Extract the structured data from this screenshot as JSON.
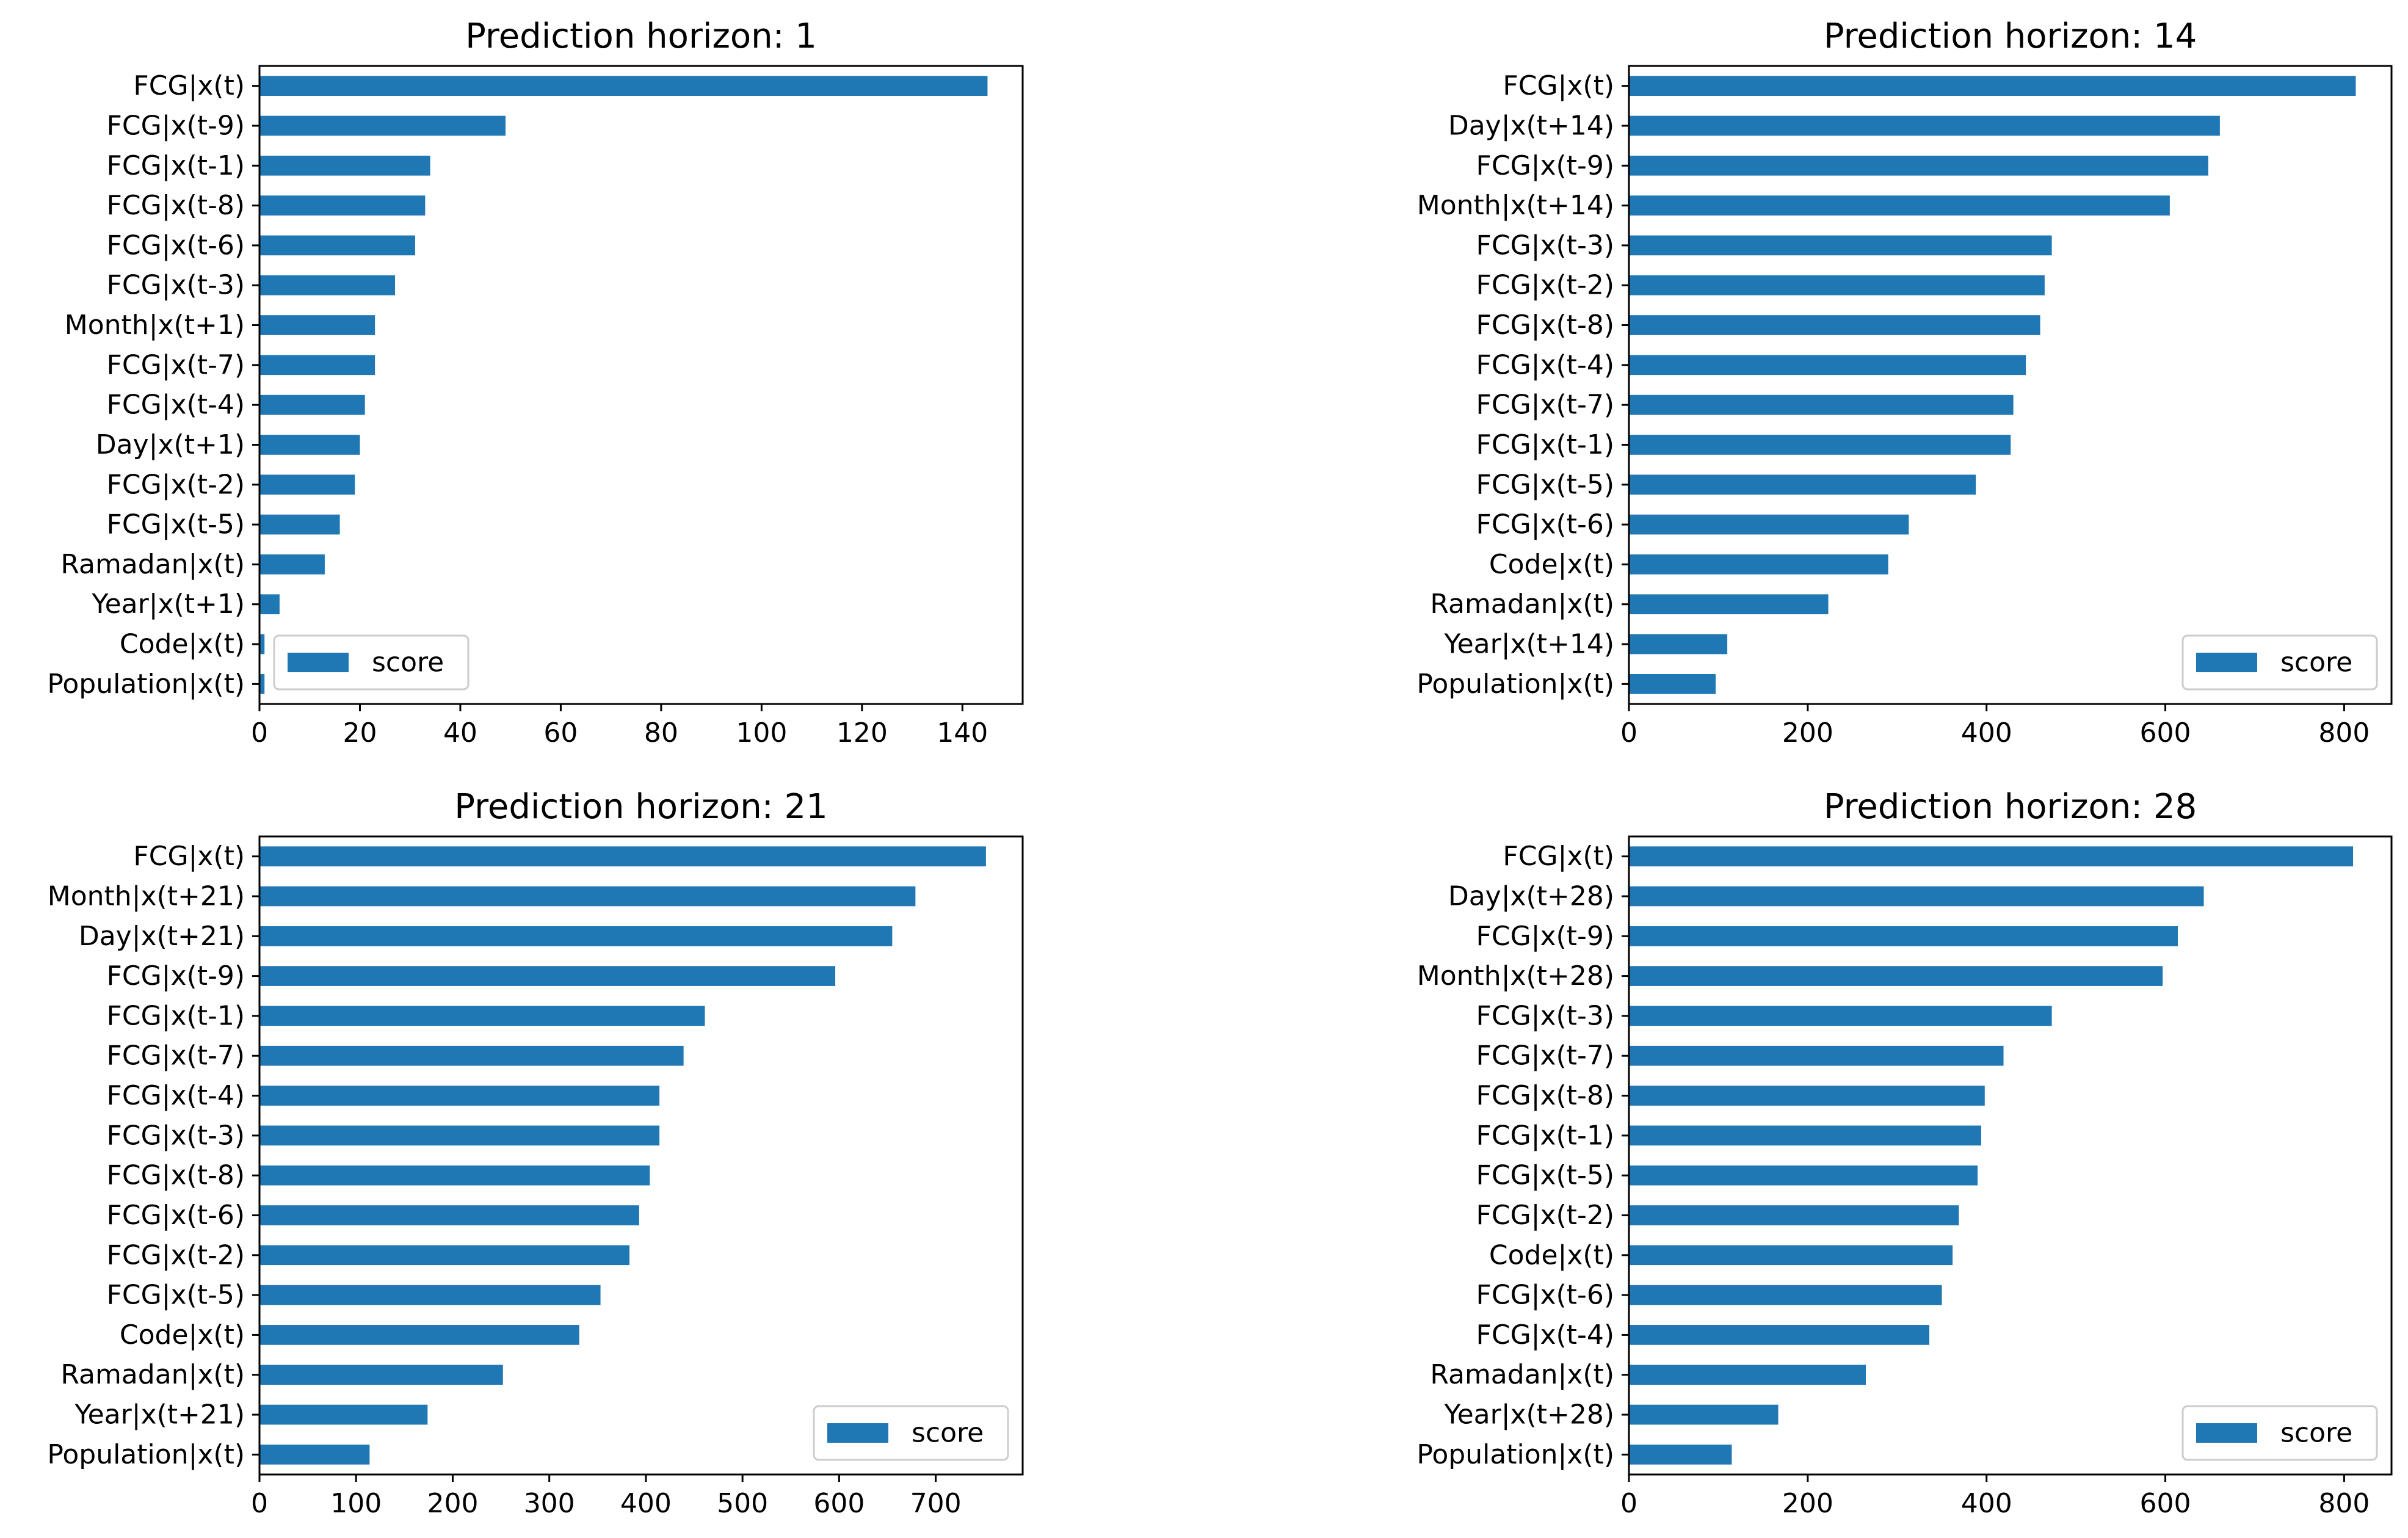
{
  "chart_data": [
    {
      "type": "bar",
      "orientation": "horizontal",
      "title": "Prediction horizon: 1",
      "categories": [
        "FCG|x(t)",
        "FCG|x(t-9)",
        "FCG|x(t-1)",
        "FCG|x(t-8)",
        "FCG|x(t-6)",
        "FCG|x(t-3)",
        "Month|x(t+1)",
        "FCG|x(t-7)",
        "FCG|x(t-4)",
        "Day|x(t+1)",
        "FCG|x(t-2)",
        "FCG|x(t-5)",
        "Ramadan|x(t)",
        "Year|x(t+1)",
        "Code|x(t)",
        "Population|x(t)"
      ],
      "series": [
        {
          "name": "score",
          "values": [
            145,
            49,
            34,
            33,
            31,
            27,
            23,
            23,
            21,
            20,
            19,
            16,
            13,
            4,
            1,
            1
          ]
        }
      ],
      "xlim": [
        0,
        152
      ],
      "xticks": [
        0,
        20,
        40,
        60,
        80,
        100,
        120,
        140
      ],
      "legend": "lower-left",
      "color": "#1f77b4"
    },
    {
      "type": "bar",
      "orientation": "horizontal",
      "title": "Prediction horizon: 14",
      "categories": [
        "FCG|x(t)",
        "Day|x(t+14)",
        "FCG|x(t-9)",
        "Month|x(t+14)",
        "FCG|x(t-3)",
        "FCG|x(t-2)",
        "FCG|x(t-8)",
        "FCG|x(t-4)",
        "FCG|x(t-7)",
        "FCG|x(t-1)",
        "FCG|x(t-5)",
        "FCG|x(t-6)",
        "Code|x(t)",
        "Ramadan|x(t)",
        "Year|x(t+14)",
        "Population|x(t)"
      ],
      "series": [
        {
          "name": "score",
          "values": [
            813,
            661,
            648,
            605,
            473,
            465,
            460,
            444,
            430,
            427,
            388,
            313,
            290,
            223,
            110,
            97
          ]
        }
      ],
      "xlim": [
        0,
        853
      ],
      "xticks": [
        0,
        200,
        400,
        600,
        800
      ],
      "legend": "lower-right",
      "color": "#1f77b4"
    },
    {
      "type": "bar",
      "orientation": "horizontal",
      "title": "Prediction horizon: 21",
      "categories": [
        "FCG|x(t)",
        "Month|x(t+21)",
        "Day|x(t+21)",
        "FCG|x(t-9)",
        "FCG|x(t-1)",
        "FCG|x(t-7)",
        "FCG|x(t-4)",
        "FCG|x(t-3)",
        "FCG|x(t-8)",
        "FCG|x(t-6)",
        "FCG|x(t-2)",
        "FCG|x(t-5)",
        "Code|x(t)",
        "Ramadan|x(t)",
        "Year|x(t+21)",
        "Population|x(t)"
      ],
      "series": [
        {
          "name": "score",
          "values": [
            752,
            679,
            655,
            596,
            461,
            439,
            414,
            414,
            404,
            393,
            383,
            353,
            331,
            252,
            174,
            114
          ]
        }
      ],
      "xlim": [
        0,
        790
      ],
      "xticks": [
        0,
        100,
        200,
        300,
        400,
        500,
        600,
        700
      ],
      "legend": "lower-right",
      "color": "#1f77b4"
    },
    {
      "type": "bar",
      "orientation": "horizontal",
      "title": "Prediction horizon: 28",
      "categories": [
        "FCG|x(t)",
        "Day|x(t+28)",
        "FCG|x(t-9)",
        "Month|x(t+28)",
        "FCG|x(t-3)",
        "FCG|x(t-7)",
        "FCG|x(t-8)",
        "FCG|x(t-1)",
        "FCG|x(t-5)",
        "FCG|x(t-2)",
        "Code|x(t)",
        "FCG|x(t-6)",
        "FCG|x(t-4)",
        "Ramadan|x(t)",
        "Year|x(t+28)",
        "Population|x(t)"
      ],
      "series": [
        {
          "name": "score",
          "values": [
            810,
            643,
            614,
            597,
            473,
            419,
            398,
            394,
            390,
            369,
            362,
            350,
            336,
            265,
            167,
            115
          ]
        }
      ],
      "xlim": [
        0,
        853
      ],
      "xticks": [
        0,
        200,
        400,
        600,
        800
      ],
      "legend": "lower-right",
      "color": "#1f77b4"
    }
  ]
}
